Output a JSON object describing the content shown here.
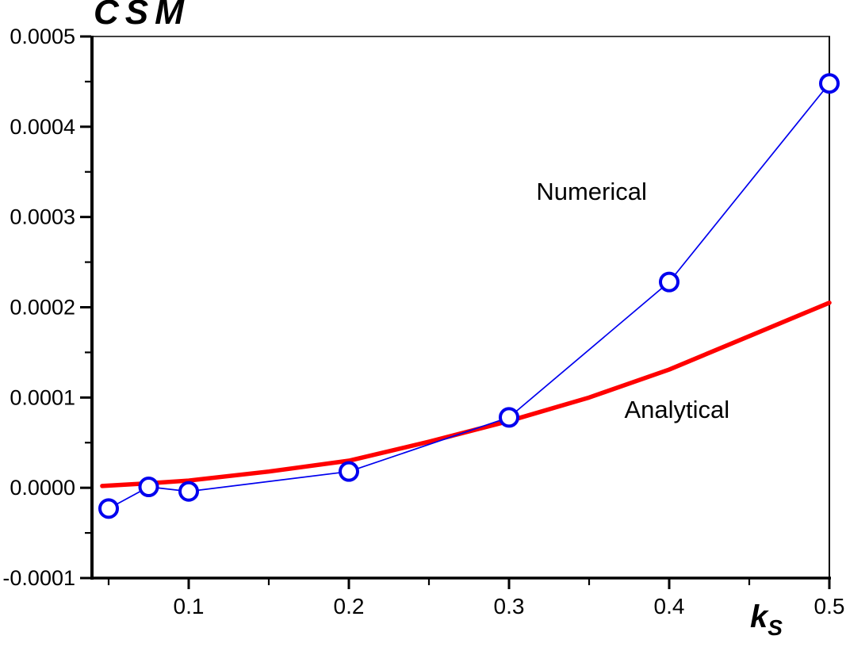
{
  "chart_data": {
    "type": "line",
    "title": "",
    "ylabel": "CSM",
    "xlabel": {
      "base": "k",
      "sub": "S"
    },
    "background_color": "#FFFFFF",
    "axis_color": "#000000",
    "grid": false,
    "legend_position": "none",
    "x_axis": {
      "min": 0.0396,
      "max": 0.5,
      "major_ticks": [
        {
          "value": 0.1,
          "label": "0.1"
        },
        {
          "value": 0.2,
          "label": "0.2"
        },
        {
          "value": 0.3,
          "label": "0.3"
        },
        {
          "value": 0.4,
          "label": "0.4"
        },
        {
          "value": 0.5,
          "label": "0.5"
        }
      ],
      "minor_ticks": [
        0.05,
        0.15,
        0.25,
        0.35,
        0.45
      ]
    },
    "y_axis": {
      "min": -0.0001,
      "max": 0.0005,
      "major_ticks": [
        {
          "value": 0.0005,
          "label": "0.0005"
        },
        {
          "value": 0.0004,
          "label": "0.0004"
        },
        {
          "value": 0.0003,
          "label": "0.0003"
        },
        {
          "value": 0.0002,
          "label": "0.0002"
        },
        {
          "value": 0.0001,
          "label": "0.0001"
        },
        {
          "value": 0.0,
          "label": "0.0000"
        },
        {
          "value": -0.0001,
          "label": "-0.0001"
        }
      ],
      "minor_ticks": [
        0.00045,
        0.00035,
        0.00025,
        0.00015,
        5e-05,
        -5e-05
      ]
    },
    "series": [
      {
        "name": "Analytical",
        "color": "#FF0000",
        "line_width": 5.5,
        "markers": false,
        "x": [
          0.046,
          0.075,
          0.1,
          0.15,
          0.2,
          0.25,
          0.3,
          0.35,
          0.4,
          0.45,
          0.5
        ],
        "y": [
          2e-06,
          5e-06,
          8e-06,
          1.8e-05,
          3e-05,
          5.1e-05,
          7.4e-05,
          0.0001,
          0.000131,
          0.000168,
          0.000205
        ]
      },
      {
        "name": "Numerical",
        "color": "#0000EE",
        "line_width": 1.7,
        "markers": true,
        "marker": "circle",
        "marker_radius": 11,
        "x": [
          0.05,
          0.075,
          0.1,
          0.2,
          0.3,
          0.4,
          0.5
        ],
        "y": [
          -2.3e-05,
          1e-06,
          -4e-06,
          1.8e-05,
          7.8e-05,
          0.000228,
          0.000448
        ]
      }
    ],
    "annotations": [
      {
        "text": "Numerical",
        "x": 0.317,
        "y": 0.000319,
        "color": "#000000"
      },
      {
        "text": "Analytical",
        "x": 0.372,
        "y": 7.73e-05,
        "color": "#000000"
      }
    ]
  }
}
